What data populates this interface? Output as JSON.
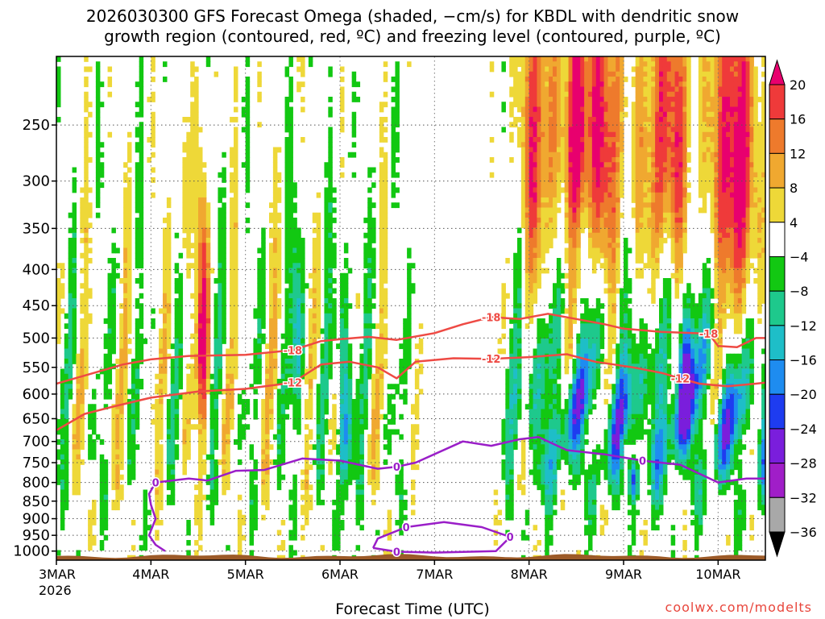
{
  "chart_data": {
    "type": "heatmap",
    "title_line1": "2026030300 GFS Forecast Omega (shaded, −cm/s) for KBDL with dendritic snow",
    "title_line2": "growth region (contoured, red, ºC) and freezing level (contoured, purple, ºC)",
    "xlabel": "Forecast Time (UTC)",
    "credit": "coolwx.com/modelts",
    "x_ticks": [
      {
        "label": "3MAR",
        "day": 0
      },
      {
        "label": "4MAR",
        "day": 1
      },
      {
        "label": "5MAR",
        "day": 2
      },
      {
        "label": "6MAR",
        "day": 3
      },
      {
        "label": "7MAR",
        "day": 4
      },
      {
        "label": "8MAR",
        "day": 5
      },
      {
        "label": "9MAR",
        "day": 6
      },
      {
        "label": "10MAR",
        "day": 7
      }
    ],
    "x_year": "2026",
    "x_range_days": [
      0,
      7.5
    ],
    "y_ticks": [
      250,
      300,
      350,
      400,
      450,
      500,
      550,
      600,
      650,
      700,
      750,
      800,
      850,
      900,
      950,
      1000
    ],
    "y_range_hpa": [
      200,
      1030
    ],
    "colorbar": {
      "labels": [
        "20",
        "16",
        "12",
        "8",
        "4",
        "−4",
        "−8",
        "−12",
        "−16",
        "−20",
        "−24",
        "−28",
        "−32",
        "−36"
      ],
      "colors": [
        "#e8006e",
        "#ef3a3a",
        "#ee7a2c",
        "#f0a830",
        "#eed838",
        "#ffffff",
        "#12c812",
        "#1ec98c",
        "#1ebec8",
        "#1e8cf0",
        "#1e3cf0",
        "#7a1edc",
        "#a01ec8",
        "#a8a8a8",
        "#000000"
      ]
    },
    "contours": [
      {
        "label": "-18",
        "color": "#ee4a44",
        "points": [
          [
            0,
            580
          ],
          [
            0.4,
            560
          ],
          [
            0.7,
            545
          ],
          [
            1,
            536
          ],
          [
            1.4,
            530
          ],
          [
            2,
            528
          ],
          [
            2.5,
            520
          ],
          [
            2.8,
            505
          ],
          [
            3,
            502
          ],
          [
            3.3,
            498
          ],
          [
            3.6,
            503
          ],
          [
            4,
            492
          ],
          [
            4.3,
            478
          ],
          [
            4.6,
            467
          ],
          [
            4.9,
            470
          ],
          [
            5.2,
            462
          ],
          [
            5.5,
            470
          ],
          [
            5.8,
            478
          ],
          [
            6,
            485
          ],
          [
            6.4,
            490
          ],
          [
            6.9,
            493
          ],
          [
            7.0,
            513
          ],
          [
            7.2,
            515
          ],
          [
            7.4,
            500
          ],
          [
            7.5,
            500
          ]
        ]
      },
      {
        "label": "-12",
        "color": "#ee4a44",
        "points": [
          [
            0,
            675
          ],
          [
            0.3,
            640
          ],
          [
            0.6,
            625
          ],
          [
            1,
            607
          ],
          [
            1.5,
            595
          ],
          [
            2,
            590
          ],
          [
            2.5,
            578
          ],
          [
            2.8,
            545
          ],
          [
            3.1,
            540
          ],
          [
            3.4,
            550
          ],
          [
            3.6,
            570
          ],
          [
            3.8,
            540
          ],
          [
            4.2,
            534
          ],
          [
            4.6,
            535
          ],
          [
            5,
            532
          ],
          [
            5.4,
            527
          ],
          [
            5.7,
            540
          ],
          [
            6.1,
            550
          ],
          [
            6.4,
            560
          ],
          [
            6.6,
            570
          ],
          [
            6.8,
            580
          ],
          [
            7.1,
            585
          ],
          [
            7.4,
            580
          ],
          [
            7.5,
            578
          ]
        ]
      },
      {
        "label": "0",
        "color": "#9a1ec8",
        "points": [
          [
            1.15,
            1000
          ],
          [
            1.05,
            980
          ],
          [
            0.98,
            950
          ],
          [
            1.05,
            900
          ],
          [
            1.0,
            860
          ],
          [
            0.98,
            830
          ],
          [
            1.05,
            800
          ],
          [
            1.4,
            790
          ],
          [
            1.6,
            795
          ],
          [
            1.9,
            770
          ],
          [
            2.2,
            768
          ],
          [
            2.6,
            740
          ],
          [
            3.0,
            745
          ],
          [
            3.4,
            765
          ],
          [
            3.6,
            760
          ],
          [
            3.8,
            750
          ],
          [
            4.3,
            700
          ],
          [
            4.6,
            710
          ],
          [
            4.9,
            695
          ],
          [
            5.1,
            690
          ],
          [
            5.4,
            720
          ],
          [
            5.8,
            730
          ],
          [
            6.2,
            745
          ],
          [
            6.6,
            755
          ],
          [
            7.0,
            800
          ],
          [
            7.3,
            790
          ],
          [
            7.5,
            790
          ]
        ]
      },
      {
        "label": "0",
        "color": "#9a1ec8",
        "points": [
          [
            3.35,
            990
          ],
          [
            3.4,
            960
          ],
          [
            3.7,
            925
          ],
          [
            4.1,
            910
          ],
          [
            4.5,
            925
          ],
          [
            4.8,
            955
          ],
          [
            4.65,
            1000
          ],
          [
            4.0,
            1005
          ],
          [
            3.6,
            1002
          ],
          [
            3.35,
            990
          ]
        ]
      }
    ]
  }
}
